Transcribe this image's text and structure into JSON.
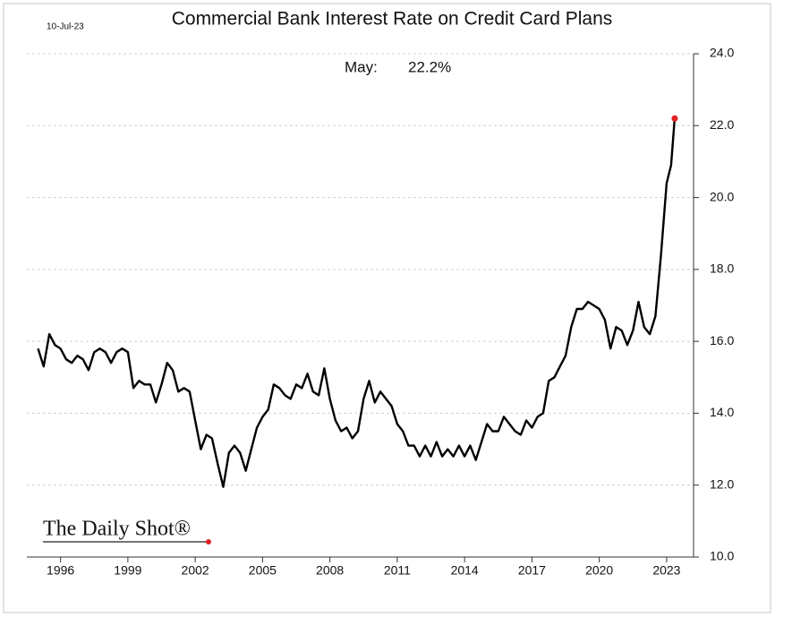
{
  "chart_data": {
    "type": "line",
    "title": "Commercial Bank Interest Rate on Credit Card Plans",
    "date_label": "10-Jul-23",
    "annotation_label": "May:",
    "annotation_value": "22.2%",
    "brand": "The Daily Shot®",
    "color": "#000000",
    "highlight_color": "#e02020",
    "grid": true,
    "xlim": [
      1994.5,
      2024.2
    ],
    "xticks": [
      1996,
      1999,
      2002,
      2005,
      2008,
      2011,
      2014,
      2017,
      2020,
      2023
    ],
    "ylim": [
      10,
      24
    ],
    "yticks": [
      {
        "value": 10,
        "label": "10.0"
      },
      {
        "value": 12,
        "label": "12.0"
      },
      {
        "value": 14,
        "label": "14.0"
      },
      {
        "value": 16,
        "label": "16.0"
      },
      {
        "value": 18,
        "label": "18.0"
      },
      {
        "value": 20,
        "label": "20.0"
      },
      {
        "value": 22,
        "label": "22.0"
      },
      {
        "value": 24,
        "label": "24.0"
      }
    ],
    "x": [
      1995.0,
      1995.25,
      1995.5,
      1995.75,
      1996.0,
      1996.25,
      1996.5,
      1996.75,
      1997.0,
      1997.25,
      1997.5,
      1997.75,
      1998.0,
      1998.25,
      1998.5,
      1998.75,
      1999.0,
      1999.25,
      1999.5,
      1999.75,
      2000.0,
      2000.25,
      2000.5,
      2000.75,
      2001.0,
      2001.25,
      2001.5,
      2001.75,
      2002.0,
      2002.25,
      2002.5,
      2002.75,
      2003.0,
      2003.25,
      2003.5,
      2003.75,
      2004.0,
      2004.25,
      2004.5,
      2004.75,
      2005.0,
      2005.25,
      2005.5,
      2005.75,
      2006.0,
      2006.25,
      2006.5,
      2006.75,
      2007.0,
      2007.25,
      2007.5,
      2007.75,
      2008.0,
      2008.25,
      2008.5,
      2008.75,
      2009.0,
      2009.25,
      2009.5,
      2009.75,
      2010.0,
      2010.25,
      2010.5,
      2010.75,
      2011.0,
      2011.25,
      2011.5,
      2011.75,
      2012.0,
      2012.25,
      2012.5,
      2012.75,
      2013.0,
      2013.25,
      2013.5,
      2013.75,
      2014.0,
      2014.25,
      2014.5,
      2014.75,
      2015.0,
      2015.25,
      2015.5,
      2015.75,
      2016.0,
      2016.25,
      2016.5,
      2016.75,
      2017.0,
      2017.25,
      2017.5,
      2017.75,
      2018.0,
      2018.25,
      2018.5,
      2018.75,
      2019.0,
      2019.25,
      2019.5,
      2019.75,
      2020.0,
      2020.25,
      2020.5,
      2020.75,
      2021.0,
      2021.25,
      2021.5,
      2021.75,
      2022.0,
      2022.25,
      2022.5,
      2022.75,
      2023.0,
      2023.2,
      2023.36
    ],
    "values": [
      15.8,
      15.3,
      16.2,
      15.9,
      15.8,
      15.5,
      15.4,
      15.6,
      15.5,
      15.2,
      15.7,
      15.8,
      15.7,
      15.4,
      15.7,
      15.8,
      15.7,
      14.7,
      14.9,
      14.8,
      14.8,
      14.3,
      14.8,
      15.4,
      15.2,
      14.6,
      14.7,
      14.6,
      13.8,
      13.0,
      13.4,
      13.3,
      12.6,
      11.95,
      12.9,
      13.1,
      12.9,
      12.4,
      13.0,
      13.6,
      13.9,
      14.1,
      14.8,
      14.7,
      14.5,
      14.4,
      14.8,
      14.7,
      15.1,
      14.6,
      14.5,
      15.25,
      14.4,
      13.8,
      13.5,
      13.6,
      13.3,
      13.5,
      14.4,
      14.9,
      14.3,
      14.6,
      14.4,
      14.2,
      13.7,
      13.5,
      13.1,
      13.1,
      12.8,
      13.1,
      12.8,
      13.2,
      12.8,
      13.0,
      12.8,
      13.1,
      12.8,
      13.1,
      12.7,
      13.2,
      13.7,
      13.5,
      13.5,
      13.9,
      13.7,
      13.5,
      13.4,
      13.8,
      13.6,
      13.9,
      14.0,
      14.9,
      15.0,
      15.3,
      15.6,
      16.4,
      16.9,
      16.9,
      17.1,
      17.0,
      16.9,
      16.6,
      15.8,
      16.4,
      16.3,
      15.9,
      16.3,
      17.1,
      16.4,
      16.2,
      16.7,
      18.4,
      20.4,
      20.9,
      22.2
    ]
  }
}
